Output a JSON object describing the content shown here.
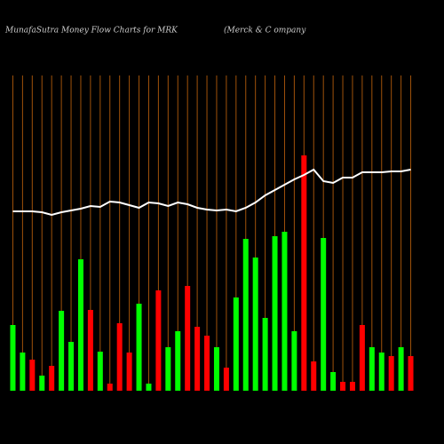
{
  "chart_data": {
    "type": "bar",
    "title": "MunafaSutra  Money Flow  Charts for MRK",
    "subtitle": "(Merck & C                              ompany",
    "values": [
      74,
      43,
      35,
      17,
      28,
      90,
      55,
      148,
      91,
      44,
      8,
      76,
      43,
      98,
      8,
      113,
      49,
      67,
      118,
      72,
      62,
      49,
      26,
      105,
      171,
      150,
      82,
      174,
      179,
      67,
      265,
      33,
      172,
      21,
      10,
      10,
      74,
      49,
      43,
      39,
      49,
      39
    ],
    "colors": [
      "#00ff00",
      "#00ff00",
      "#ff0000",
      "#00ff00",
      "#ff0000",
      "#00ff00",
      "#00ff00",
      "#00ff00",
      "#ff0000",
      "#00ff00",
      "#ff0000",
      "#ff0000",
      "#ff0000",
      "#00ff00",
      "#00ff00",
      "#ff0000",
      "#00ff00",
      "#00ff00",
      "#ff0000",
      "#ff0000",
      "#ff0000",
      "#00ff00",
      "#ff0000",
      "#00ff00",
      "#00ff00",
      "#00ff00",
      "#00ff00",
      "#00ff00",
      "#00ff00",
      "#00ff00",
      "#ff0000",
      "#ff0000",
      "#00ff00",
      "#00ff00",
      "#ff0000",
      "#ff0000",
      "#ff0000",
      "#00ff00",
      "#00ff00",
      "#ff0000",
      "#00ff00",
      "#ff0000"
    ],
    "line": {
      "color": "#ffffff",
      "values": [
        202,
        202,
        202,
        201,
        198,
        201,
        203,
        205,
        208,
        207,
        213,
        212,
        209,
        206,
        212,
        211,
        208,
        212,
        210,
        206,
        204,
        203,
        204,
        202,
        206,
        212,
        220,
        226,
        232,
        238,
        243,
        249,
        236,
        234,
        240,
        240,
        246,
        246,
        246,
        247,
        247,
        249
      ]
    },
    "ylim": [
      0,
      360
    ],
    "gridline_color": "#a0520a"
  }
}
